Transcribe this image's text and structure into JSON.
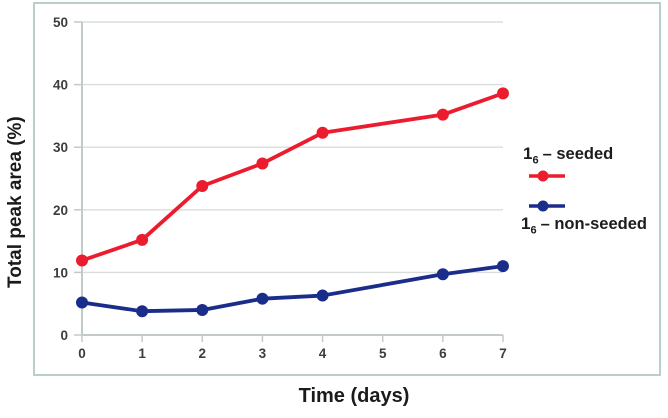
{
  "figure": {
    "background": "#ffffff",
    "frame_border_color": "#b9cfca",
    "gridline_color": "#d9dedd",
    "axis_line_color": "#c3cbc9",
    "tick_label_color": "#3d3d3d"
  },
  "chart_data": {
    "type": "line",
    "title": "",
    "xlabel": "Time (days)",
    "ylabel": "Total peak area (%)",
    "x": [
      0,
      1,
      2,
      3,
      4,
      6,
      7
    ],
    "xticks": [
      0,
      1,
      2,
      3,
      4,
      5,
      6,
      7
    ],
    "yticks": [
      0,
      10,
      20,
      30,
      40,
      50
    ],
    "xlim": [
      0,
      7
    ],
    "ylim": [
      0,
      50
    ],
    "grid": "horizontal",
    "legend_position": "right-inside",
    "series": [
      {
        "name": "1₆ – seeded",
        "color": "#ec1c2f",
        "values": [
          11.9,
          15.2,
          23.8,
          27.4,
          32.3,
          35.2,
          38.6
        ]
      },
      {
        "name": "1₆ – non-seeded",
        "color": "#1b2d8b",
        "values": [
          5.2,
          3.8,
          4.0,
          5.8,
          6.3,
          9.7,
          11.0
        ]
      }
    ]
  },
  "legend": {
    "entries": [
      {
        "compound": "1",
        "subscript": "6",
        "label": "– seeded",
        "color": "#ec1c2f"
      },
      {
        "compound": "1",
        "subscript": "6",
        "label": "– non-seeded",
        "color": "#1b2d8b"
      }
    ]
  }
}
